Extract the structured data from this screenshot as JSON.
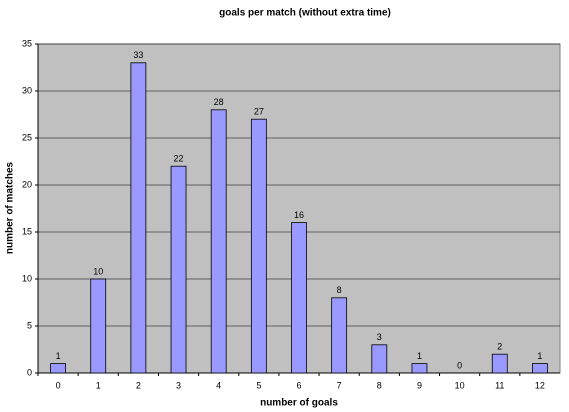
{
  "chart_data": {
    "type": "bar",
    "title": "goals per match (without extra time)",
    "x_label": "number of goals",
    "y_label": "number of matches",
    "categories": [
      "0",
      "1",
      "2",
      "3",
      "4",
      "5",
      "6",
      "7",
      "8",
      "9",
      "10",
      "11",
      "12"
    ],
    "values": [
      1,
      10,
      33,
      22,
      28,
      27,
      16,
      8,
      3,
      1,
      0,
      2,
      1
    ],
    "color": "#9999ff",
    "ylim": [
      0,
      35
    ],
    "yticks": [
      0,
      5,
      10,
      15,
      20,
      25,
      30,
      35
    ],
    "grid": true,
    "data_labels": true
  }
}
